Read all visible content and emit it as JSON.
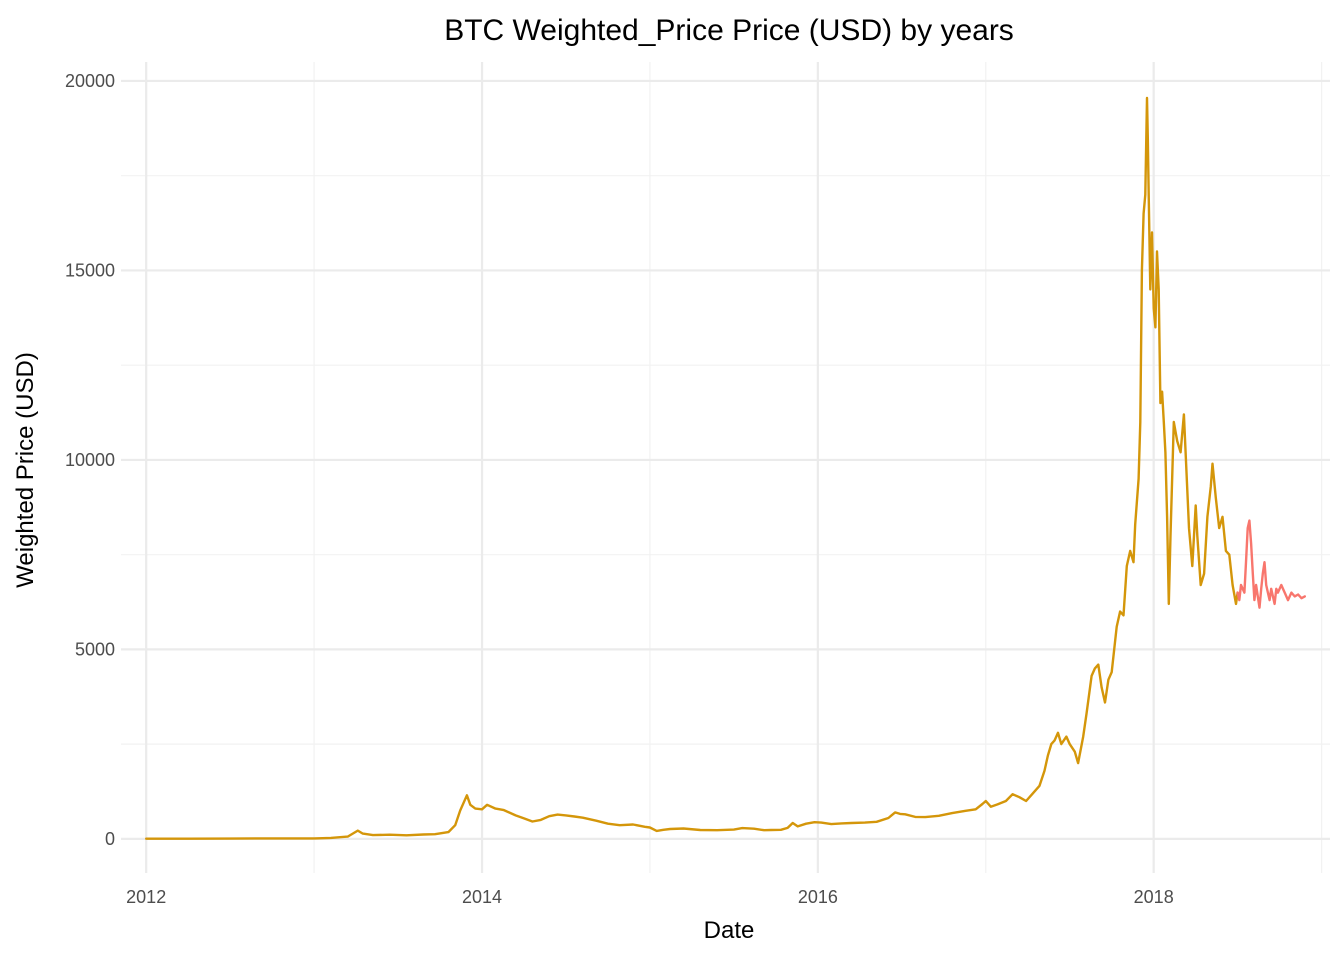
{
  "chart_data": {
    "type": "line",
    "title": "BTC Weighted_Price Price (USD) by years",
    "xlabel": "Date",
    "ylabel": "Weighted Price (USD)",
    "x_unit": "year",
    "xlim": [
      2011.85,
      2019.05
    ],
    "ylim": [
      -900,
      20500
    ],
    "x_ticks": [
      {
        "value": 2012,
        "label": "2012"
      },
      {
        "value": 2014,
        "label": "2014"
      },
      {
        "value": 2016,
        "label": "2016"
      },
      {
        "value": 2018,
        "label": "2018"
      }
    ],
    "x_minor_ticks": [
      2013,
      2015,
      2017,
      2019
    ],
    "y_ticks": [
      {
        "value": 0,
        "label": "0"
      },
      {
        "value": 5000,
        "label": "5000"
      },
      {
        "value": 10000,
        "label": "10000"
      },
      {
        "value": 15000,
        "label": "15000"
      },
      {
        "value": 20000,
        "label": "20000"
      }
    ],
    "y_minor_ticks": [
      2500,
      7500,
      12500,
      17500
    ],
    "grid": true,
    "legend": "none",
    "series": [
      {
        "color": "#D4960A",
        "points": [
          [
            2012.0,
            5
          ],
          [
            2012.25,
            5
          ],
          [
            2012.5,
            8
          ],
          [
            2012.75,
            12
          ],
          [
            2013.0,
            14
          ],
          [
            2013.1,
            25
          ],
          [
            2013.2,
            60
          ],
          [
            2013.26,
            220
          ],
          [
            2013.29,
            140
          ],
          [
            2013.35,
            100
          ],
          [
            2013.45,
            110
          ],
          [
            2013.55,
            95
          ],
          [
            2013.65,
            115
          ],
          [
            2013.72,
            125
          ],
          [
            2013.8,
            180
          ],
          [
            2013.84,
            360
          ],
          [
            2013.87,
            750
          ],
          [
            2013.91,
            1150
          ],
          [
            2013.93,
            900
          ],
          [
            2013.96,
            800
          ],
          [
            2014.0,
            780
          ],
          [
            2014.03,
            900
          ],
          [
            2014.08,
            800
          ],
          [
            2014.13,
            760
          ],
          [
            2014.2,
            620
          ],
          [
            2014.25,
            540
          ],
          [
            2014.3,
            460
          ],
          [
            2014.35,
            500
          ],
          [
            2014.4,
            600
          ],
          [
            2014.45,
            640
          ],
          [
            2014.5,
            620
          ],
          [
            2014.55,
            590
          ],
          [
            2014.6,
            560
          ],
          [
            2014.68,
            480
          ],
          [
            2014.75,
            400
          ],
          [
            2014.82,
            360
          ],
          [
            2014.9,
            380
          ],
          [
            2014.97,
            320
          ],
          [
            2015.0,
            300
          ],
          [
            2015.04,
            210
          ],
          [
            2015.08,
            240
          ],
          [
            2015.12,
            260
          ],
          [
            2015.2,
            275
          ],
          [
            2015.3,
            235
          ],
          [
            2015.4,
            230
          ],
          [
            2015.5,
            245
          ],
          [
            2015.55,
            285
          ],
          [
            2015.62,
            270
          ],
          [
            2015.68,
            230
          ],
          [
            2015.72,
            235
          ],
          [
            2015.78,
            240
          ],
          [
            2015.82,
            290
          ],
          [
            2015.85,
            420
          ],
          [
            2015.88,
            330
          ],
          [
            2015.93,
            400
          ],
          [
            2015.98,
            440
          ],
          [
            2016.02,
            430
          ],
          [
            2016.08,
            390
          ],
          [
            2016.14,
            410
          ],
          [
            2016.2,
            420
          ],
          [
            2016.28,
            430
          ],
          [
            2016.35,
            450
          ],
          [
            2016.42,
            550
          ],
          [
            2016.46,
            700
          ],
          [
            2016.49,
            660
          ],
          [
            2016.52,
            650
          ],
          [
            2016.58,
            580
          ],
          [
            2016.64,
            575
          ],
          [
            2016.72,
            610
          ],
          [
            2016.8,
            680
          ],
          [
            2016.88,
            740
          ],
          [
            2016.94,
            780
          ],
          [
            2016.98,
            920
          ],
          [
            2017.0,
            1000
          ],
          [
            2017.03,
            850
          ],
          [
            2017.07,
            910
          ],
          [
            2017.12,
            1000
          ],
          [
            2017.16,
            1180
          ],
          [
            2017.2,
            1100
          ],
          [
            2017.24,
            1000
          ],
          [
            2017.28,
            1200
          ],
          [
            2017.32,
            1400
          ],
          [
            2017.35,
            1800
          ],
          [
            2017.37,
            2200
          ],
          [
            2017.39,
            2500
          ],
          [
            2017.41,
            2600
          ],
          [
            2017.43,
            2800
          ],
          [
            2017.45,
            2500
          ],
          [
            2017.48,
            2700
          ],
          [
            2017.5,
            2500
          ],
          [
            2017.53,
            2300
          ],
          [
            2017.55,
            2000
          ],
          [
            2017.58,
            2700
          ],
          [
            2017.6,
            3300
          ],
          [
            2017.63,
            4300
          ],
          [
            2017.65,
            4500
          ],
          [
            2017.67,
            4600
          ],
          [
            2017.69,
            4000
          ],
          [
            2017.71,
            3600
          ],
          [
            2017.73,
            4200
          ],
          [
            2017.75,
            4400
          ],
          [
            2017.78,
            5600
          ],
          [
            2017.8,
            6000
          ],
          [
            2017.82,
            5900
          ],
          [
            2017.84,
            7200
          ],
          [
            2017.86,
            7600
          ],
          [
            2017.88,
            7300
          ],
          [
            2017.89,
            8300
          ],
          [
            2017.91,
            9500
          ],
          [
            2017.92,
            11000
          ],
          [
            2017.93,
            15000
          ],
          [
            2017.94,
            16500
          ],
          [
            2017.95,
            17000
          ],
          [
            2017.96,
            19550
          ],
          [
            2017.965,
            18500
          ],
          [
            2017.97,
            17000
          ],
          [
            2017.98,
            14500
          ],
          [
            2017.99,
            16000
          ],
          [
            2018.0,
            14000
          ],
          [
            2018.01,
            13500
          ],
          [
            2018.02,
            15500
          ],
          [
            2018.03,
            14500
          ],
          [
            2018.04,
            11500
          ],
          [
            2018.05,
            11800
          ],
          [
            2018.06,
            11000
          ],
          [
            2018.07,
            10200
          ],
          [
            2018.08,
            8500
          ],
          [
            2018.09,
            6200
          ],
          [
            2018.1,
            8000
          ],
          [
            2018.12,
            11000
          ],
          [
            2018.14,
            10500
          ],
          [
            2018.16,
            10200
          ],
          [
            2018.18,
            11200
          ],
          [
            2018.2,
            9200
          ],
          [
            2018.21,
            8200
          ],
          [
            2018.23,
            7200
          ],
          [
            2018.25,
            8800
          ],
          [
            2018.26,
            8000
          ],
          [
            2018.28,
            6700
          ],
          [
            2018.3,
            7000
          ],
          [
            2018.32,
            8500
          ],
          [
            2018.34,
            9300
          ],
          [
            2018.35,
            9900
          ],
          [
            2018.37,
            9000
          ],
          [
            2018.39,
            8200
          ],
          [
            2018.41,
            8500
          ],
          [
            2018.43,
            7600
          ],
          [
            2018.45,
            7500
          ],
          [
            2018.47,
            6700
          ],
          [
            2018.49,
            6200
          ],
          [
            2018.5,
            6500
          ]
        ]
      },
      {
        "color": "#F8766D",
        "points": [
          [
            2018.5,
            6500
          ],
          [
            2018.51,
            6300
          ],
          [
            2018.52,
            6700
          ],
          [
            2018.54,
            6500
          ],
          [
            2018.55,
            7300
          ],
          [
            2018.56,
            8200
          ],
          [
            2018.57,
            8400
          ],
          [
            2018.58,
            7800
          ],
          [
            2018.59,
            7000
          ],
          [
            2018.6,
            6300
          ],
          [
            2018.61,
            6700
          ],
          [
            2018.62,
            6400
          ],
          [
            2018.63,
            6100
          ],
          [
            2018.64,
            6600
          ],
          [
            2018.65,
            7000
          ],
          [
            2018.66,
            7300
          ],
          [
            2018.67,
            6700
          ],
          [
            2018.68,
            6500
          ],
          [
            2018.69,
            6300
          ],
          [
            2018.7,
            6600
          ],
          [
            2018.71,
            6400
          ],
          [
            2018.72,
            6200
          ],
          [
            2018.73,
            6600
          ],
          [
            2018.74,
            6500
          ],
          [
            2018.76,
            6700
          ],
          [
            2018.78,
            6500
          ],
          [
            2018.8,
            6300
          ],
          [
            2018.82,
            6500
          ],
          [
            2018.84,
            6400
          ],
          [
            2018.86,
            6450
          ],
          [
            2018.88,
            6350
          ],
          [
            2018.9,
            6400
          ]
        ]
      }
    ]
  }
}
